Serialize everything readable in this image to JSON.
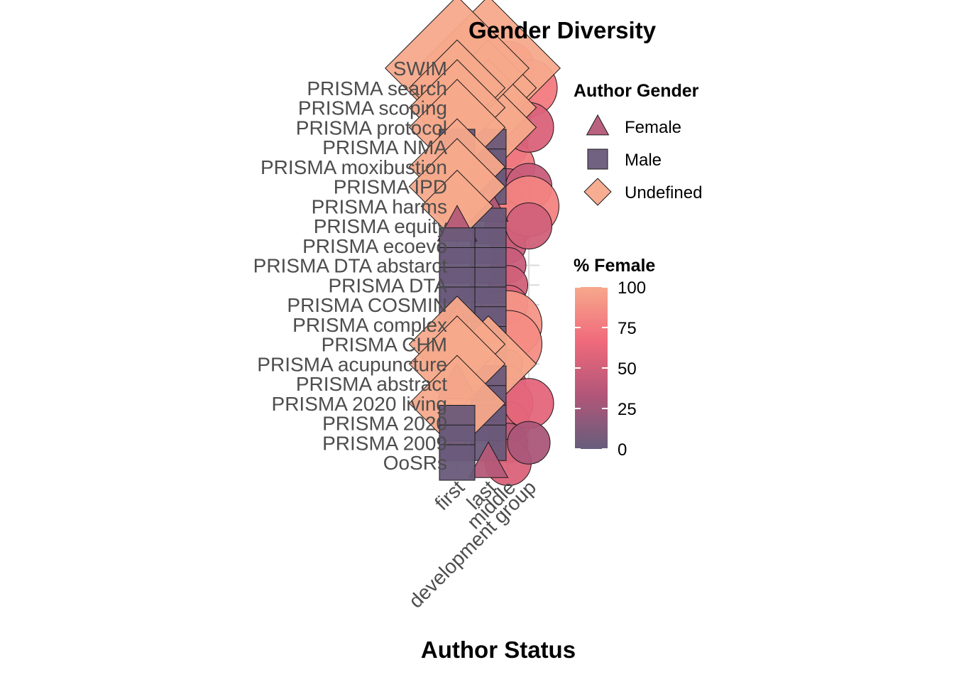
{
  "chart_data": {
    "type": "scatter",
    "title": "Gender Diversity",
    "xlabel": "Author Status",
    "ylabel": "",
    "x_categories": [
      "first",
      "last",
      "middle",
      "development group"
    ],
    "y_categories": [
      "SWIM",
      "PRISMA search",
      "PRISMA scoping",
      "PRISMA protocol",
      "PRISMA NMA ",
      "PRISMA moxibustion",
      "PRISMA IPD",
      "PRISMA harms",
      "PRISMA equity",
      "PRISMA ecoevo",
      "PRISMA DTA abstarct",
      "PRISMA DTA",
      "PRISMA COSMIN",
      "PRISMA complex",
      "PRISMA CHM",
      "PRISMA acupuncture ",
      "PRISMA abstract",
      "PRISMA 2020 living",
      "PRISMA 2020",
      "PRISMA 2009",
      "OoSRs"
    ],
    "shape_legend": {
      "title": "Author Gender",
      "items": [
        {
          "label": "Female",
          "shape": "triangle",
          "color": "#b45a78"
        },
        {
          "label": "Male",
          "shape": "square",
          "color": "#6a5a7a"
        },
        {
          "label": "Undefined",
          "shape": "diamond",
          "color": "#f7a98b"
        }
      ]
    },
    "color_legend": {
      "title": "% Female",
      "ticks": [
        0,
        25,
        50,
        75,
        100
      ],
      "colors": [
        "#675d7b",
        "#b25679",
        "#f06a7b",
        "#f7a88c"
      ]
    },
    "points": [
      {
        "x": "first",
        "y": "SWIM",
        "gender": "Undefined",
        "pct_female": 100,
        "size": 3
      },
      {
        "x": "first",
        "y": "PRISMA search",
        "gender": "Undefined",
        "pct_female": 100,
        "size": 2
      },
      {
        "x": "first",
        "y": "PRISMA scoping",
        "gender": "Undefined",
        "pct_female": 100,
        "size": 2
      },
      {
        "x": "first",
        "y": "PRISMA protocol",
        "gender": "Undefined",
        "pct_female": 100,
        "size": 2
      },
      {
        "x": "first",
        "y": "PRISMA NMA ",
        "gender": "Male",
        "pct_female": 0,
        "size": 1
      },
      {
        "x": "first",
        "y": "PRISMA moxibustion",
        "gender": "Undefined",
        "pct_female": 100,
        "size": 2
      },
      {
        "x": "first",
        "y": "PRISMA IPD",
        "gender": "Undefined",
        "pct_female": 100,
        "size": 2
      },
      {
        "x": "first",
        "y": "PRISMA harms",
        "gender": "Undefined",
        "pct_female": 100,
        "size": 1.5
      },
      {
        "x": "first",
        "y": "PRISMA equity",
        "gender": "Female",
        "pct_female": 40,
        "size": 1
      },
      {
        "x": "first",
        "y": "PRISMA ecoevo",
        "gender": "Male",
        "pct_female": 0,
        "size": 1
      },
      {
        "x": "first",
        "y": "PRISMA DTA abstarct",
        "gender": "Male",
        "pct_female": 0,
        "size": 1
      },
      {
        "x": "first",
        "y": "PRISMA DTA",
        "gender": "Male",
        "pct_female": 0,
        "size": 1
      },
      {
        "x": "first",
        "y": "PRISMA COSMIN",
        "gender": "Male",
        "pct_female": 0,
        "size": 1
      },
      {
        "x": "first",
        "y": "PRISMA complex",
        "gender": "Female",
        "pct_female": 40,
        "size": 1
      },
      {
        "x": "first",
        "y": "PRISMA CHM",
        "gender": "Undefined",
        "pct_female": 100,
        "size": 2
      },
      {
        "x": "first",
        "y": "PRISMA acupuncture ",
        "gender": "Undefined",
        "pct_female": 100,
        "size": 2
      },
      {
        "x": "first",
        "y": "PRISMA abstract",
        "gender": "Female",
        "pct_female": 40,
        "size": 1
      },
      {
        "x": "first",
        "y": "PRISMA 2020 living",
        "gender": "Undefined",
        "pct_female": 100,
        "size": 2
      },
      {
        "x": "first",
        "y": "PRISMA 2020",
        "gender": "Male",
        "pct_female": 0,
        "size": 1
      },
      {
        "x": "first",
        "y": "PRISMA 2009",
        "gender": "Male",
        "pct_female": 0,
        "size": 1
      },
      {
        "x": "first",
        "y": "OoSRs",
        "gender": "Male",
        "pct_female": 0,
        "size": 1
      },
      {
        "x": "last",
        "y": "SWIM",
        "gender": "Undefined",
        "pct_female": 100,
        "size": 3
      },
      {
        "x": "last",
        "y": "PRISMA search",
        "gender": "Undefined",
        "pct_female": 100,
        "size": 2
      },
      {
        "x": "last",
        "y": "PRISMA scoping",
        "gender": "Undefined",
        "pct_female": 100,
        "size": 2
      },
      {
        "x": "last",
        "y": "PRISMA protocol",
        "gender": "Undefined",
        "pct_female": 100,
        "size": 2
      },
      {
        "x": "last",
        "y": "PRISMA NMA ",
        "gender": "Male",
        "pct_female": 0,
        "size": 1
      },
      {
        "x": "last",
        "y": "PRISMA moxibustion",
        "gender": "Male",
        "pct_female": 0,
        "size": 1
      },
      {
        "x": "last",
        "y": "PRISMA IPD",
        "gender": "Male",
        "pct_female": 0,
        "size": 1
      },
      {
        "x": "last",
        "y": "PRISMA harms",
        "gender": "Female",
        "pct_female": 40,
        "size": 1
      },
      {
        "x": "last",
        "y": "PRISMA equity",
        "gender": "Male",
        "pct_female": 0,
        "size": 1
      },
      {
        "x": "last",
        "y": "PRISMA ecoevo",
        "gender": "Male",
        "pct_female": 0,
        "size": 1
      },
      {
        "x": "last",
        "y": "PRISMA DTA abstarct",
        "gender": "Male",
        "pct_female": 0,
        "size": 1
      },
      {
        "x": "last",
        "y": "PRISMA DTA",
        "gender": "Male",
        "pct_female": 0,
        "size": 1
      },
      {
        "x": "last",
        "y": "PRISMA COSMIN",
        "gender": "Male",
        "pct_female": 0,
        "size": 1
      },
      {
        "x": "last",
        "y": "PRISMA complex",
        "gender": "Male",
        "pct_female": 0,
        "size": 1
      },
      {
        "x": "last",
        "y": "PRISMA CHM",
        "gender": "Male",
        "pct_female": 0,
        "size": 1
      },
      {
        "x": "last",
        "y": "PRISMA acupuncture ",
        "gender": "Undefined",
        "pct_female": 100,
        "size": 2
      },
      {
        "x": "last",
        "y": "PRISMA abstract",
        "gender": "Male",
        "pct_female": 0,
        "size": 1
      },
      {
        "x": "last",
        "y": "PRISMA 2020 living",
        "gender": "Male",
        "pct_female": 0,
        "size": 1
      },
      {
        "x": "last",
        "y": "PRISMA 2020",
        "gender": "Male",
        "pct_female": 0,
        "size": 1
      },
      {
        "x": "last",
        "y": "PRISMA 2009",
        "gender": "Male",
        "pct_female": 0,
        "size": 1
      },
      {
        "x": "last",
        "y": "OoSRs",
        "gender": "Female",
        "pct_female": 40,
        "size": 1
      },
      {
        "x": "middle",
        "y": "SWIM",
        "pct_female": 70,
        "size": 1.5
      },
      {
        "x": "middle",
        "y": "PRISMA search",
        "pct_female": 60,
        "size": 1.4
      },
      {
        "x": "middle",
        "y": "PRISMA scoping",
        "pct_female": 65,
        "size": 1.4
      },
      {
        "x": "middle",
        "y": "PRISMA protocol",
        "pct_female": 55,
        "size": 1.3
      },
      {
        "x": "middle",
        "y": "PRISMA NMA ",
        "pct_female": 40,
        "size": 1.1
      },
      {
        "x": "middle",
        "y": "PRISMA moxibustion",
        "pct_female": 75,
        "size": 1.5
      },
      {
        "x": "middle",
        "y": "PRISMA IPD",
        "pct_female": 45,
        "size": 1.0
      },
      {
        "x": "middle",
        "y": "PRISMA harms",
        "pct_female": 40,
        "size": 1.1
      },
      {
        "x": "middle",
        "y": "PRISMA equity",
        "pct_female": 55,
        "size": 1.3
      },
      {
        "x": "middle",
        "y": "PRISMA ecoevo",
        "pct_female": 45,
        "size": 1.0
      },
      {
        "x": "middle",
        "y": "PRISMA DTA abstarct",
        "pct_female": 45,
        "size": 1.0
      },
      {
        "x": "middle",
        "y": "PRISMA DTA",
        "pct_female": 50,
        "size": 1.1
      },
      {
        "x": "middle",
        "y": "PRISMA COSMIN",
        "pct_female": 55,
        "size": 1.1
      },
      {
        "x": "middle",
        "y": "PRISMA complex",
        "pct_female": 90,
        "size": 1.9
      },
      {
        "x": "middle",
        "y": "PRISMA CHM",
        "pct_female": 85,
        "size": 1.9
      },
      {
        "x": "middle",
        "y": "PRISMA acupuncture ",
        "pct_female": 40,
        "size": 0.8
      },
      {
        "x": "middle",
        "y": "PRISMA abstract",
        "pct_female": 45,
        "size": 1.0
      },
      {
        "x": "middle",
        "y": "PRISMA 2020 living",
        "pct_female": 60,
        "size": 1.4
      },
      {
        "x": "middle",
        "y": "PRISMA 2020",
        "pct_female": 55,
        "size": 1.2
      },
      {
        "x": "middle",
        "y": "PRISMA 2009",
        "pct_female": 40,
        "size": 1.1
      },
      {
        "x": "middle",
        "y": "OoSRs",
        "pct_female": 55,
        "size": 1.3
      },
      {
        "x": "development group",
        "y": "PRISMA search",
        "pct_female": 75,
        "size": 1.6
      },
      {
        "x": "development group",
        "y": "PRISMA protocol",
        "pct_female": 55,
        "size": 1.4
      },
      {
        "x": "development group",
        "y": "PRISMA IPD",
        "pct_female": 45,
        "size": 1.3
      },
      {
        "x": "development group",
        "y": "PRISMA harms",
        "pct_female": 80,
        "size": 1.7
      },
      {
        "x": "development group",
        "y": "PRISMA equity",
        "pct_female": 50,
        "size": 1.3
      },
      {
        "x": "development group",
        "y": "PRISMA 2020 living",
        "pct_female": 60,
        "size": 1.4
      },
      {
        "x": "development group",
        "y": "PRISMA 2009",
        "pct_female": 30,
        "size": 1.2
      }
    ]
  }
}
